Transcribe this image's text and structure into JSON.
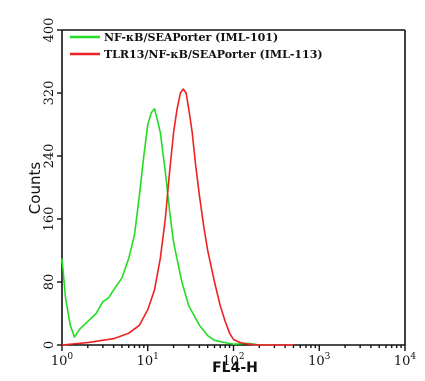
{
  "chart_data": {
    "type": "line",
    "xlabel": "FL4-H",
    "ylabel": "Counts",
    "xscale": "log",
    "xlim": [
      1,
      10000
    ],
    "ylim": [
      0,
      400
    ],
    "x_tick_labels": [
      {
        "base": "10",
        "exp": "0"
      },
      {
        "base": "10",
        "exp": "1"
      },
      {
        "base": "10",
        "exp": "2"
      },
      {
        "base": "10",
        "exp": "3"
      },
      {
        "base": "10",
        "exp": "4"
      }
    ],
    "y_ticks": [
      0,
      80,
      160,
      240,
      320,
      400
    ],
    "legend_position": "top-left",
    "series": [
      {
        "name": "NF-κB/SEAPorter (IML-101)",
        "color": "#22dd22",
        "x": [
          1.0,
          1.1,
          1.25,
          1.4,
          1.6,
          2.0,
          2.5,
          3.0,
          3.5,
          4.0,
          5.0,
          6.0,
          7.0,
          8.0,
          9.0,
          10.0,
          11.0,
          12.0,
          13.0,
          14.0,
          16.0,
          18.0,
          20.0,
          25.0,
          30.0,
          40.0,
          50.0,
          60.0,
          80.0,
          100.0,
          150.0,
          200.0
        ],
        "y": [
          110,
          60,
          25,
          10,
          20,
          30,
          40,
          55,
          60,
          70,
          85,
          110,
          140,
          190,
          240,
          280,
          295,
          300,
          285,
          270,
          220,
          170,
          130,
          80,
          50,
          25,
          12,
          6,
          3,
          1,
          2,
          0
        ]
      },
      {
        "name": "TLR13/NF-κB/SEAPorter (IML-113)",
        "color": "#ee2222",
        "x": [
          1.0,
          2.0,
          4.0,
          6.0,
          8.0,
          10.0,
          12.0,
          14.0,
          16.0,
          18.0,
          20.0,
          22.0,
          24.0,
          26.0,
          28.0,
          30.0,
          33.0,
          36.0,
          40.0,
          45.0,
          50.0,
          60.0,
          70.0,
          80.0,
          90.0,
          100.0,
          120.0,
          150.0,
          200.0,
          300.0,
          500.0
        ],
        "y": [
          0,
          3,
          8,
          15,
          25,
          45,
          70,
          110,
          160,
          220,
          270,
          300,
          320,
          325,
          320,
          300,
          270,
          230,
          190,
          150,
          120,
          80,
          50,
          30,
          15,
          7,
          3,
          1,
          0,
          0,
          0
        ]
      }
    ]
  }
}
